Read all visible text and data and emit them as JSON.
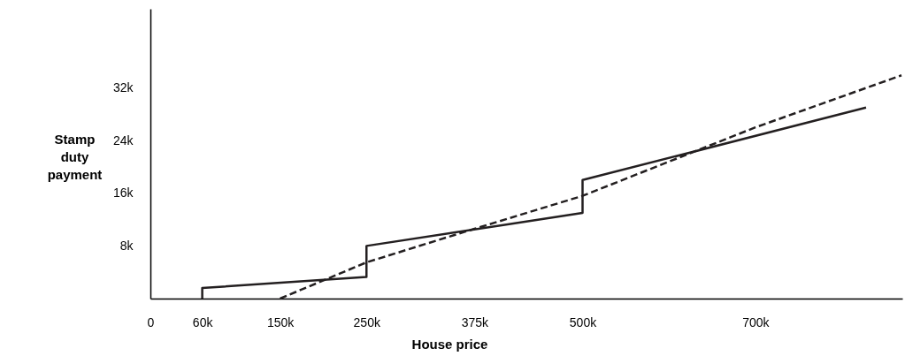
{
  "chart_data": {
    "type": "line",
    "xlabel": "House price",
    "ylabel": "Stamp duty payment",
    "xlim": [
      0,
      870000
    ],
    "ylim": [
      0,
      44000
    ],
    "xticks": [
      0,
      {
        "value": 60000,
        "label": "60k"
      },
      {
        "value": 150000,
        "label": "150k"
      },
      {
        "value": 250000,
        "label": "250k"
      },
      {
        "value": 375000,
        "label": "375k"
      },
      {
        "value": 500000,
        "label": "500k"
      },
      {
        "value": 700000,
        "label": "700k"
      }
    ],
    "yticks": [
      {
        "value": 8000,
        "label": "8k"
      },
      {
        "value": 16000,
        "label": "16k"
      },
      {
        "value": 24000,
        "label": "24k"
      },
      {
        "value": 32000,
        "label": "32k"
      }
    ],
    "grid": false,
    "series": [
      {
        "color": "#231f20",
        "line_style": "solid",
        "x": [
          60000,
          60000,
          250000,
          250000,
          500000,
          500000,
          828000
        ],
        "values": [
          0,
          1600,
          3300,
          8000,
          13000,
          18000,
          29000
        ]
      },
      {
        "color": "#231f20",
        "line_style": "dashed",
        "x": [
          150000,
          250000,
          375000,
          500000,
          700000,
          869000
        ],
        "values": [
          0,
          5500,
          10600,
          15600,
          26000,
          33900
        ]
      }
    ]
  }
}
